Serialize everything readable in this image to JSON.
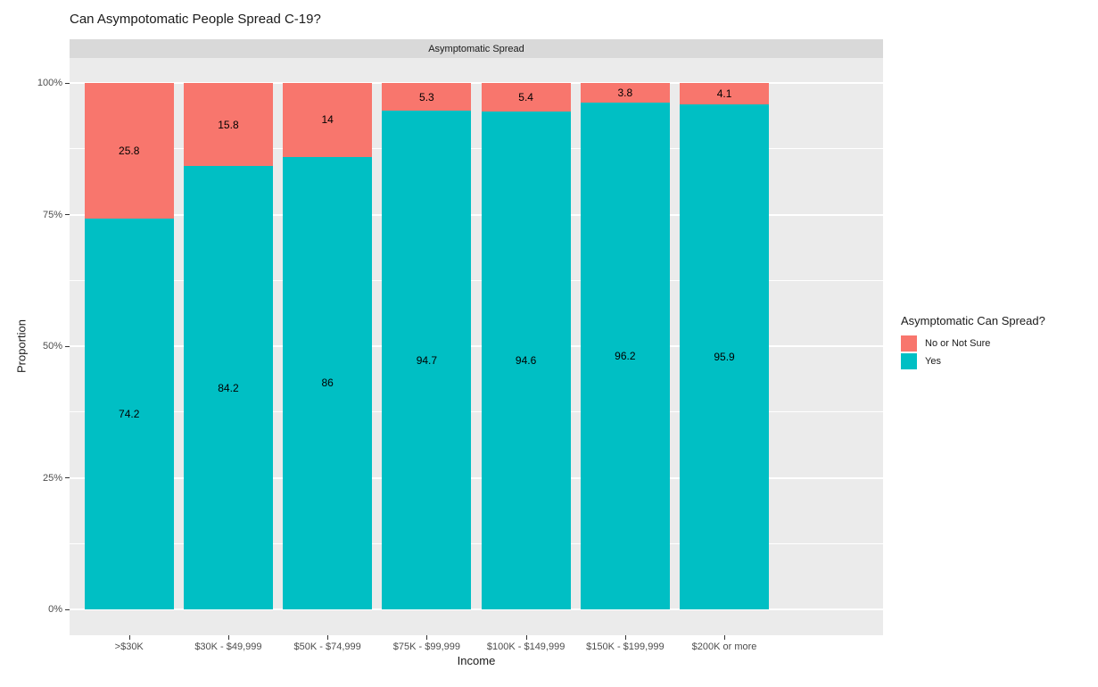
{
  "title": "Can Asympotomatic People Spread C-19?",
  "facet_label": "Asymptomatic Spread",
  "axes": {
    "x_title": "Income",
    "y_title": "Proportion"
  },
  "legend": {
    "title": "Asymptomatic Can Spread?",
    "items": [
      {
        "label": "No or Not Sure",
        "color": "#F8766D"
      },
      {
        "label": "Yes",
        "color": "#00BFC4"
      }
    ]
  },
  "colors": {
    "panel_bg": "#EBEBEB",
    "strip_bg": "#D9D9D9",
    "grid": "#FFFFFF",
    "no_or_not_sure": "#F8766D",
    "yes": "#00BFC4"
  },
  "chart_data": {
    "type": "bar",
    "stacked": true,
    "title": "Can Asympotomatic People Spread C-19?",
    "facet": "Asymptomatic Spread",
    "xlabel": "Income",
    "ylabel": "Proportion",
    "ylim": [
      0,
      100
    ],
    "grid": true,
    "legend_position": "right",
    "legend_title": "Asymptomatic Can Spread?",
    "categories": [
      ">$30K",
      "$30K - $49,999",
      "$50K - $74,999",
      "$75K - $99,999",
      "$100K - $149,999",
      "$150K - $199,999",
      "$200K or more"
    ],
    "series": [
      {
        "name": "Yes",
        "color": "#00BFC4",
        "values": [
          74.2,
          84.2,
          86,
          94.7,
          94.6,
          96.2,
          95.9
        ]
      },
      {
        "name": "No or Not Sure",
        "color": "#F8766D",
        "values": [
          25.8,
          15.8,
          14,
          5.3,
          5.4,
          3.8,
          4.1
        ]
      }
    ],
    "y_major_percents": [
      0,
      25,
      50,
      75,
      100
    ],
    "y_tick_labels": [
      "0%",
      "25%",
      "50%",
      "75%",
      "100%"
    ],
    "y_minor_percents": [
      12.5,
      37.5,
      62.5,
      87.5
    ]
  }
}
